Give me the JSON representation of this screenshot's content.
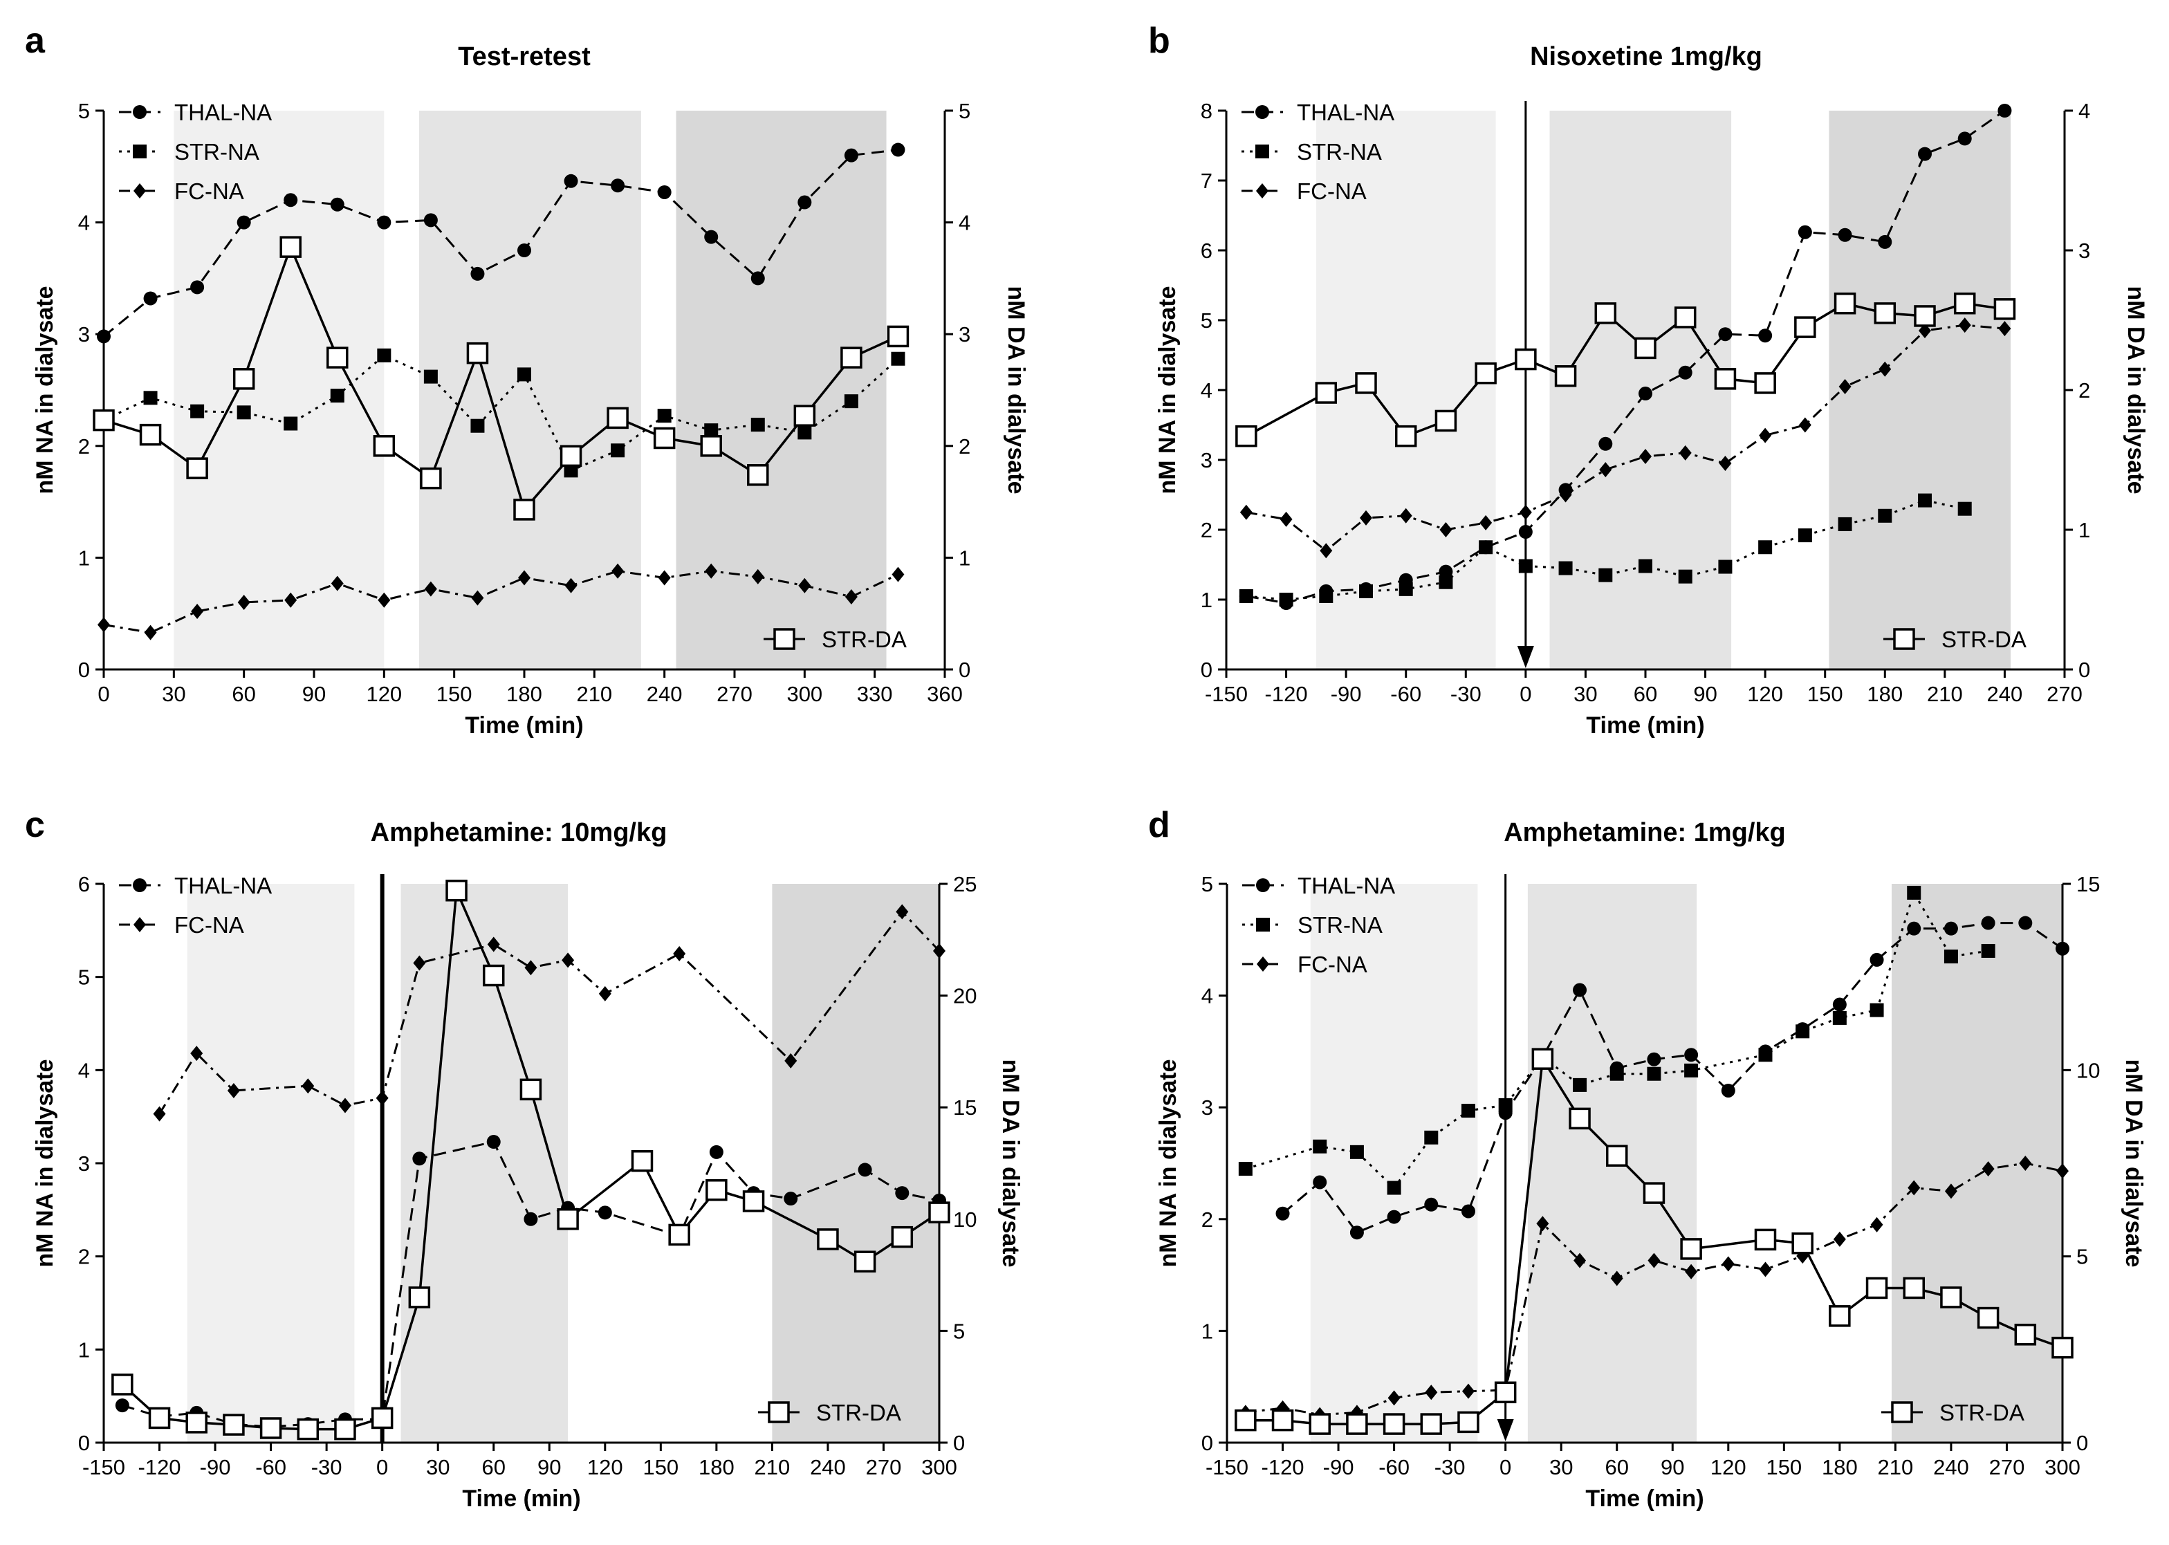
{
  "chart_data": [
    {
      "id": "a",
      "type": "line",
      "panel_label": "a",
      "title": "Test-retest",
      "xlabel": "Time (min)",
      "ylabel": "nM NA in dialysate",
      "y2label": "nM DA in dialysate",
      "xlim": [
        0,
        360
      ],
      "xticks": [
        0,
        30,
        60,
        90,
        120,
        150,
        180,
        210,
        240,
        270,
        300,
        330,
        360
      ],
      "ylim": [
        0,
        5
      ],
      "yticks": [
        0,
        1,
        2,
        3,
        4,
        5
      ],
      "y2lim": [
        0,
        5
      ],
      "y2ticks": [
        0,
        1,
        2,
        3,
        4,
        5
      ],
      "shaded_regions": [
        {
          "x": [
            30,
            120
          ],
          "color": "#f0f0f0"
        },
        {
          "x": [
            135,
            230
          ],
          "color": "#e4e4e4"
        },
        {
          "x": [
            245,
            335
          ],
          "color": "#d8d8d8"
        }
      ],
      "event_arrow": null,
      "event_line": null,
      "series": [
        {
          "name": "THAL-NA",
          "marker": "circle",
          "dash": "dashed",
          "axis": "left",
          "x": [
            0,
            20,
            40,
            60,
            80,
            100,
            120,
            140,
            160,
            180,
            200,
            220,
            240,
            260,
            280,
            300,
            320,
            340
          ],
          "y": [
            2.98,
            3.32,
            3.42,
            4.0,
            4.2,
            4.16,
            4.0,
            4.02,
            3.54,
            3.75,
            4.37,
            4.33,
            4.27,
            3.87,
            3.5,
            4.18,
            4.6,
            4.65
          ]
        },
        {
          "name": "STR-NA",
          "marker": "square",
          "dash": "dotted",
          "axis": "left",
          "x": [
            0,
            20,
            40,
            60,
            80,
            100,
            120,
            140,
            160,
            180,
            200,
            220,
            240,
            260,
            280,
            300,
            320,
            340
          ],
          "y": [
            2.23,
            2.43,
            2.31,
            2.3,
            2.2,
            2.45,
            2.81,
            2.62,
            2.18,
            2.64,
            1.78,
            1.96,
            2.27,
            2.14,
            2.19,
            2.12,
            2.4,
            2.78
          ]
        },
        {
          "name": "FC-NA",
          "marker": "diamond",
          "dash": "dashdot",
          "axis": "left",
          "x": [
            0,
            20,
            40,
            60,
            80,
            100,
            120,
            140,
            160,
            180,
            200,
            220,
            240,
            260,
            280,
            300,
            320,
            340
          ],
          "y": [
            0.4,
            0.33,
            0.52,
            0.6,
            0.62,
            0.77,
            0.62,
            0.72,
            0.64,
            0.82,
            0.75,
            0.88,
            0.82,
            0.88,
            0.83,
            0.75,
            0.65,
            0.85
          ]
        },
        {
          "name": "STR-DA",
          "marker": "open-square",
          "dash": "solid",
          "axis": "right",
          "x": [
            0,
            20,
            40,
            60,
            80,
            100,
            120,
            140,
            160,
            180,
            200,
            220,
            240,
            260,
            280,
            300,
            320,
            340
          ],
          "y": [
            2.23,
            2.1,
            1.8,
            2.6,
            3.78,
            2.79,
            2.0,
            1.71,
            2.83,
            1.43,
            1.91,
            2.25,
            2.07,
            2.0,
            1.74,
            2.27,
            2.79,
            2.98
          ]
        }
      ],
      "legend_top": [
        "THAL-NA",
        "STR-NA",
        "FC-NA"
      ],
      "legend_bottom": "STR-DA"
    },
    {
      "id": "b",
      "type": "line",
      "panel_label": "b",
      "title": "Nisoxetine 1mg/kg",
      "xlabel": "Time (min)",
      "ylabel": "nM NA in dialysate",
      "y2label": "nM DA in dialysate",
      "xlim": [
        -150,
        270
      ],
      "xticks": [
        -150,
        -120,
        -90,
        -60,
        -30,
        0,
        30,
        60,
        90,
        120,
        150,
        180,
        210,
        240,
        270
      ],
      "ylim": [
        0,
        8
      ],
      "yticks": [
        0,
        1,
        2,
        3,
        4,
        5,
        6,
        7,
        8
      ],
      "y2lim": [
        0,
        4
      ],
      "y2ticks": [
        0,
        1,
        2,
        3,
        4
      ],
      "shaded_regions": [
        {
          "x": [
            -105,
            -15
          ],
          "color": "#f0f0f0"
        },
        {
          "x": [
            12,
            103
          ],
          "color": "#e4e4e4"
        },
        {
          "x": [
            152,
            243
          ],
          "color": "#d8d8d8"
        }
      ],
      "event_arrow": 0,
      "event_line": null,
      "series": [
        {
          "name": "THAL-NA",
          "marker": "circle",
          "dash": "dashed",
          "axis": "left",
          "x": [
            -140,
            -120,
            -100,
            -80,
            -60,
            -40,
            -20,
            0,
            20,
            40,
            60,
            80,
            100,
            120,
            140,
            160,
            180,
            200,
            220,
            240
          ],
          "y": [
            1.05,
            0.95,
            1.12,
            1.15,
            1.28,
            1.4,
            1.75,
            1.97,
            2.57,
            3.23,
            3.95,
            4.25,
            4.8,
            4.78,
            6.26,
            6.22,
            6.12,
            7.38,
            7.6,
            8.0
          ]
        },
        {
          "name": "STR-NA",
          "marker": "square",
          "dash": "dotted",
          "axis": "left",
          "x": [
            -140,
            -120,
            -100,
            -80,
            -60,
            -40,
            -20,
            0,
            20,
            40,
            60,
            80,
            100,
            120,
            140,
            160,
            180,
            200,
            220
          ],
          "y": [
            1.05,
            1.0,
            1.05,
            1.12,
            1.15,
            1.25,
            1.75,
            1.48,
            1.45,
            1.35,
            1.48,
            1.33,
            1.47,
            1.75,
            1.92,
            2.08,
            2.2,
            2.42,
            2.3
          ]
        },
        {
          "name": "FC-NA",
          "marker": "diamond",
          "dash": "dashdot",
          "axis": "left",
          "x": [
            -140,
            -120,
            -100,
            -80,
            -60,
            -40,
            -20,
            0,
            20,
            40,
            60,
            80,
            100,
            120,
            140,
            160,
            180,
            200,
            220,
            240
          ],
          "y": [
            2.25,
            2.15,
            1.7,
            2.17,
            2.2,
            2.0,
            2.1,
            2.25,
            2.5,
            2.86,
            3.05,
            3.1,
            2.95,
            3.35,
            3.5,
            4.05,
            4.3,
            4.85,
            4.93,
            4.88
          ]
        },
        {
          "name": "STR-DA",
          "marker": "open-square",
          "dash": "solid",
          "axis": "right",
          "x": [
            -140,
            -100,
            -80,
            -60,
            -40,
            -20,
            0,
            20,
            40,
            60,
            80,
            100,
            120,
            140,
            160,
            180,
            200,
            220,
            240
          ],
          "y": [
            1.67,
            1.98,
            2.05,
            1.67,
            1.78,
            2.12,
            2.22,
            2.1,
            2.55,
            2.3,
            2.52,
            2.08,
            2.05,
            2.45,
            2.62,
            2.55,
            2.53,
            2.62,
            2.58
          ]
        }
      ],
      "legend_top": [
        "THAL-NA",
        "STR-NA",
        "FC-NA"
      ],
      "legend_bottom": "STR-DA"
    },
    {
      "id": "c",
      "type": "line",
      "panel_label": "c",
      "title": "Amphetamine: 10mg/kg",
      "xlabel": "Time (min)",
      "ylabel": "nM NA in dialysate",
      "y2label": "nM DA in dialysate",
      "xlim": [
        -150,
        300
      ],
      "xticks": [
        -150,
        -120,
        -90,
        -60,
        -30,
        0,
        30,
        60,
        90,
        120,
        150,
        180,
        210,
        240,
        270,
        300
      ],
      "ylim": [
        0,
        6
      ],
      "yticks": [
        0,
        1,
        2,
        3,
        4,
        5,
        6
      ],
      "y2lim": [
        0,
        25
      ],
      "y2ticks": [
        0,
        5,
        10,
        15,
        20,
        25
      ],
      "shaded_regions": [
        {
          "x": [
            -105,
            -15
          ],
          "color": "#f0f0f0"
        },
        {
          "x": [
            10,
            100
          ],
          "color": "#e4e4e4"
        },
        {
          "x": [
            210,
            300
          ],
          "color": "#d8d8d8"
        }
      ],
      "event_arrow": null,
      "event_line": 0,
      "series": [
        {
          "name": "THAL-NA",
          "marker": "circle",
          "dash": "dashed",
          "axis": "left",
          "x": [
            -140,
            -120,
            -100,
            -80,
            -60,
            -40,
            -20,
            0,
            20,
            60,
            80,
            100,
            120,
            160,
            180,
            200,
            220,
            260,
            280,
            300
          ],
          "y": [
            0.4,
            0.28,
            0.32,
            0.2,
            0.17,
            0.2,
            0.25,
            0.25,
            3.05,
            3.23,
            2.4,
            2.52,
            2.47,
            2.22,
            3.12,
            2.68,
            2.62,
            2.93,
            2.68,
            2.6
          ]
        },
        {
          "name": "FC-NA",
          "marker": "diamond",
          "dash": "dashdot",
          "axis": "left",
          "x": [
            -120,
            -100,
            -80,
            -40,
            -20,
            0,
            20,
            60,
            80,
            100,
            120,
            160,
            220,
            280,
            300
          ],
          "y": [
            3.53,
            4.18,
            3.78,
            3.83,
            3.62,
            3.7,
            5.15,
            5.35,
            5.1,
            5.18,
            4.82,
            5.25,
            4.1,
            5.7,
            5.28
          ]
        },
        {
          "name": "STR-DA",
          "marker": "open-square",
          "dash": "solid",
          "axis": "right",
          "x": [
            -140,
            -120,
            -100,
            -80,
            -60,
            -40,
            -20,
            0,
            20,
            40,
            60,
            80,
            100,
            140,
            160,
            180,
            200,
            240,
            260,
            280,
            300
          ],
          "y": [
            2.6,
            1.1,
            0.9,
            0.8,
            0.65,
            0.6,
            0.6,
            1.1,
            6.5,
            24.7,
            20.9,
            15.8,
            10.0,
            12.6,
            9.3,
            11.3,
            10.8,
            9.1,
            8.1,
            9.2,
            10.3
          ]
        }
      ],
      "legend_top": [
        "THAL-NA",
        "FC-NA"
      ],
      "legend_bottom": "STR-DA"
    },
    {
      "id": "d",
      "type": "line",
      "panel_label": "d",
      "title": "Amphetamine: 1mg/kg",
      "xlabel": "Time (min)",
      "ylabel": "nM NA in dialysate",
      "y2label": "nM DA in dialysate",
      "xlim": [
        -150,
        300
      ],
      "xticks": [
        -150,
        -120,
        -90,
        -60,
        -30,
        0,
        30,
        60,
        90,
        120,
        150,
        180,
        210,
        240,
        270,
        300
      ],
      "ylim": [
        0,
        5
      ],
      "yticks": [
        0,
        1,
        2,
        3,
        4,
        5
      ],
      "y2lim": [
        0,
        15
      ],
      "y2ticks": [
        0,
        5,
        10,
        15
      ],
      "shaded_regions": [
        {
          "x": [
            -105,
            -15
          ],
          "color": "#f0f0f0"
        },
        {
          "x": [
            12,
            103
          ],
          "color": "#e4e4e4"
        },
        {
          "x": [
            208,
            300
          ],
          "color": "#d8d8d8"
        }
      ],
      "event_arrow": 0,
      "event_line": null,
      "series": [
        {
          "name": "THAL-NA",
          "marker": "circle",
          "dash": "dashed",
          "axis": "left",
          "x": [
            -120,
            -100,
            -80,
            -60,
            -40,
            -20,
            0,
            20,
            40,
            60,
            80,
            100,
            120,
            140,
            160,
            180,
            200,
            220,
            240,
            260,
            280,
            300
          ],
          "y": [
            2.05,
            2.33,
            1.88,
            2.02,
            2.13,
            2.07,
            2.95,
            3.45,
            4.05,
            3.35,
            3.43,
            3.47,
            3.15,
            3.5,
            3.7,
            3.92,
            4.32,
            4.6,
            4.6,
            4.65,
            4.65,
            4.42
          ]
        },
        {
          "name": "STR-NA",
          "marker": "square",
          "dash": "dotted",
          "axis": "left",
          "x": [
            -140,
            -100,
            -80,
            -60,
            -40,
            -20,
            0,
            20,
            40,
            60,
            80,
            100,
            140,
            160,
            180,
            200,
            220,
            240,
            260
          ],
          "y": [
            2.45,
            2.65,
            2.6,
            2.28,
            2.73,
            2.97,
            3.02,
            3.45,
            3.2,
            3.3,
            3.3,
            3.33,
            3.47,
            3.68,
            3.8,
            3.87,
            4.92,
            4.35,
            4.4
          ]
        },
        {
          "name": "FC-NA",
          "marker": "diamond",
          "dash": "dashdot",
          "axis": "left",
          "x": [
            -140,
            -120,
            -100,
            -80,
            -60,
            -40,
            -20,
            0,
            20,
            40,
            60,
            80,
            100,
            120,
            140,
            160,
            180,
            200,
            220,
            240,
            260,
            280,
            300
          ],
          "y": [
            0.27,
            0.31,
            0.25,
            0.27,
            0.4,
            0.45,
            0.46,
            0.47,
            1.96,
            1.63,
            1.47,
            1.63,
            1.53,
            1.6,
            1.55,
            1.67,
            1.82,
            1.95,
            2.28,
            2.25,
            2.45,
            2.5,
            2.43
          ]
        },
        {
          "name": "STR-DA",
          "marker": "open-square",
          "dash": "solid",
          "axis": "right",
          "x": [
            -140,
            -120,
            -100,
            -80,
            -60,
            -40,
            -20,
            0,
            20,
            40,
            60,
            80,
            100,
            140,
            160,
            180,
            200,
            220,
            240,
            260,
            280,
            300
          ],
          "y": [
            0.6,
            0.6,
            0.5,
            0.5,
            0.5,
            0.5,
            0.55,
            1.35,
            10.3,
            8.7,
            7.7,
            6.7,
            5.2,
            5.45,
            5.35,
            3.4,
            4.15,
            4.15,
            3.9,
            3.35,
            2.9,
            2.55
          ]
        }
      ],
      "legend_top": [
        "THAL-NA",
        "STR-NA",
        "FC-NA"
      ],
      "legend_bottom": "STR-DA"
    }
  ]
}
